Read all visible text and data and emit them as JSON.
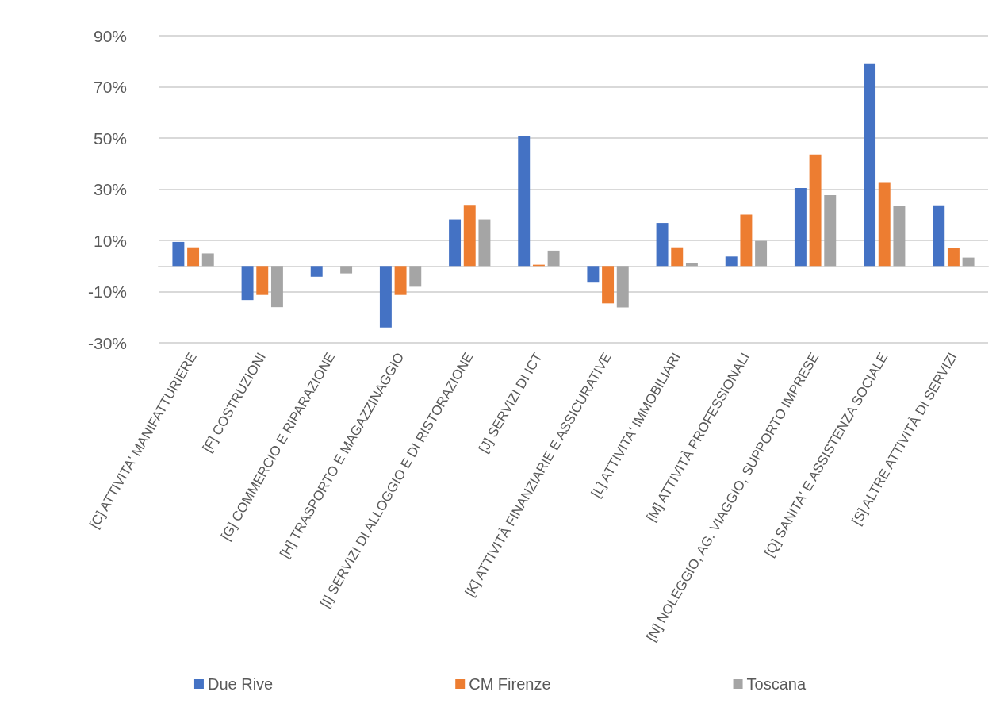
{
  "chart_data": {
    "type": "bar",
    "categories": [
      "[C] ATTIVITA' MANIFATTURIERE",
      "[F] COSTRUZIONI",
      "[G] COMMERCIO E RIPARAZIONE",
      "[H] TRASPORTO E MAGAZZINAGGIO",
      "[I] SERVIZI DI ALLOGGIO E DI RISTORAZIONE",
      "[J] SERVIZI DI ICT",
      "[K] ATTIVITÀ FINANZIARIE E ASSICURATIVE",
      "[L] ATTIVITA' IMMOBILIARI",
      "[M] ATTIVITÀ PROFESSIONALI",
      "[N] NOLEGGIO, AG. VIAGGIO, SUPPORTO IMPRESE",
      "[Q] SANITA' E ASSISTENZA SOCIALE",
      "[S] ALTRE ATTIVITÀ DI SERVIZI"
    ],
    "series": [
      {
        "name": "Due Rive",
        "color": "#4472c4",
        "values": [
          9.4,
          -13.3,
          -4.2,
          -24,
          18.2,
          50.7,
          -6.5,
          16.8,
          3.7,
          30.5,
          78.9,
          23.7
        ]
      },
      {
        "name": "CM Firenze",
        "color": "#ed7d31",
        "values": [
          7.3,
          -11.3,
          0,
          -11.3,
          23.9,
          0.5,
          -14.6,
          7.3,
          20.1,
          43.6,
          32.8,
          6.9
        ]
      },
      {
        "name": "Toscana",
        "color": "#a5a5a5",
        "values": [
          4.9,
          -16.1,
          -2.9,
          -8.1,
          18.2,
          6,
          -16.2,
          1.2,
          9.8,
          27.7,
          23.3,
          3.3
        ]
      }
    ],
    "ylim": [
      -30,
      90
    ],
    "yticks": [
      {
        "value": -30,
        "label": "-30%"
      },
      {
        "value": -10,
        "label": "-10%"
      },
      {
        "value": 10,
        "label": "10%"
      },
      {
        "value": 30,
        "label": "30%"
      },
      {
        "value": 50,
        "label": "50%"
      },
      {
        "value": 70,
        "label": "70%"
      },
      {
        "value": 90,
        "label": "90%"
      }
    ],
    "grid": "y",
    "legend": "bottom"
  }
}
